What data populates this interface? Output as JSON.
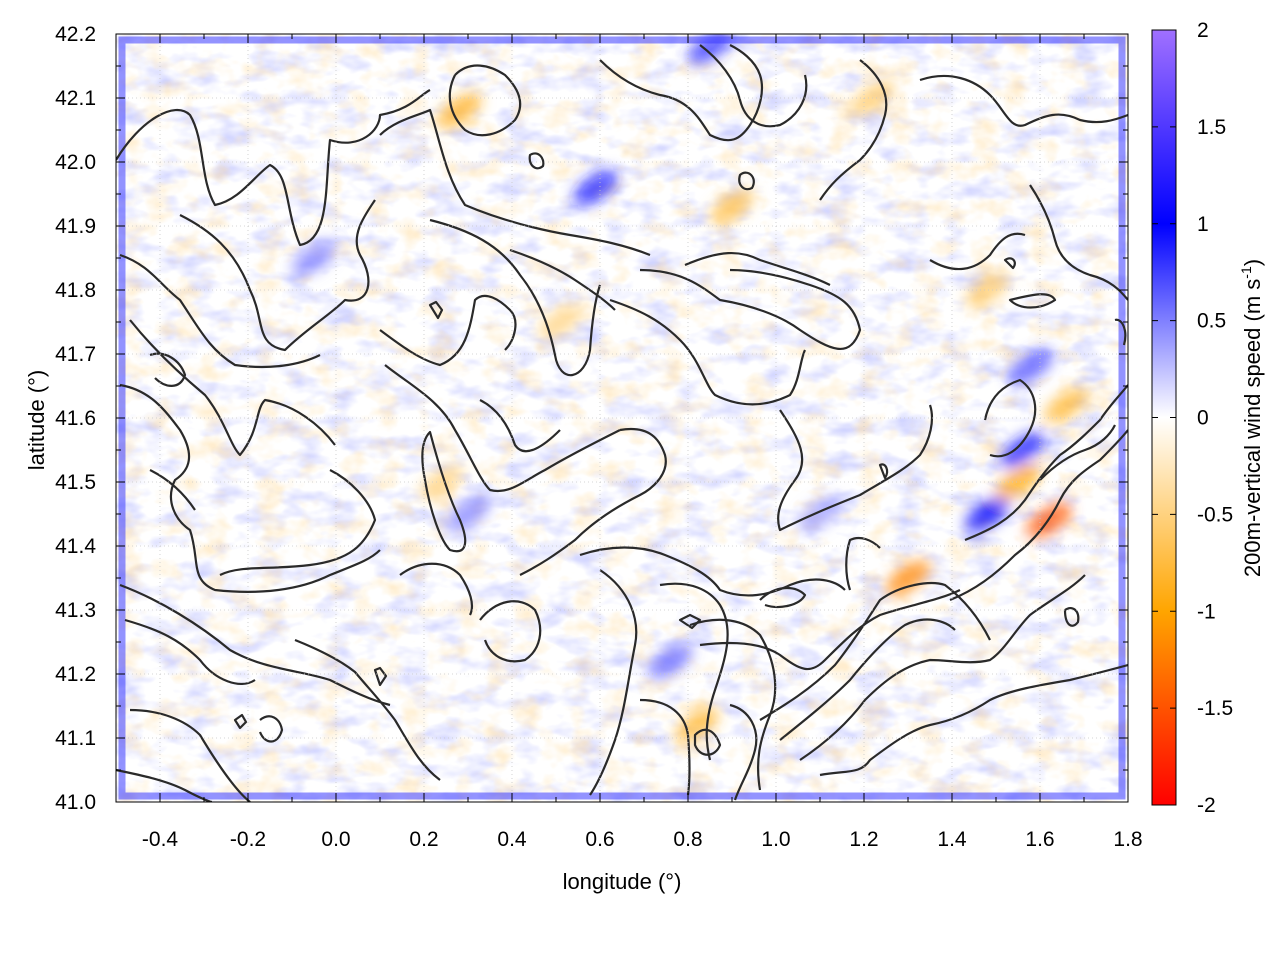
{
  "chart_data": {
    "type": "heatmap",
    "xlabel": "longitude (°)",
    "ylabel": "latitude (°)",
    "xlim": [
      -0.5,
      1.8
    ],
    "ylim": [
      41.0,
      42.2
    ],
    "x_ticks": [
      -0.4,
      -0.2,
      0.0,
      0.2,
      0.4,
      0.6,
      0.8,
      1.0,
      1.2,
      1.4,
      1.6,
      1.8
    ],
    "x_tick_labels": [
      "-0.4",
      "-0.2",
      "0.0",
      "0.2",
      "0.4",
      "0.6",
      "0.8",
      "1.0",
      "1.2",
      "1.4",
      "1.6",
      "1.8"
    ],
    "y_ticks": [
      41.0,
      41.1,
      41.2,
      41.3,
      41.4,
      41.5,
      41.6,
      41.7,
      41.8,
      41.9,
      42.0,
      42.1,
      42.2
    ],
    "y_tick_labels": [
      "41.0",
      "41.1",
      "41.2",
      "41.3",
      "41.4",
      "41.5",
      "41.6",
      "41.7",
      "41.8",
      "41.9",
      "42.0",
      "42.1",
      "42.2"
    ],
    "grid": true,
    "colorbar": {
      "label": "200m-vertical wind speed (m s",
      "label_sup": "-1",
      "label_end": ")",
      "range": [
        -2,
        2
      ],
      "ticks": [
        -2,
        -1.5,
        -1,
        -0.5,
        0,
        0.5,
        1,
        1.5,
        2
      ],
      "tick_labels": [
        "-2",
        "-1.5",
        "-1",
        "-0.5",
        "0",
        "0.5",
        "1",
        "1.5",
        "2"
      ],
      "stops": [
        {
          "value": -2,
          "color": "#ff0000"
        },
        {
          "value": -1,
          "color": "#ffa500"
        },
        {
          "value": 0,
          "color": "#ffffff"
        },
        {
          "value": 1,
          "color": "#0000ff"
        },
        {
          "value": 2,
          "color": "#a070ff"
        }
      ]
    },
    "positive_hotspots": [
      {
        "lon": 1.48,
        "lat": 41.45,
        "value": 1.0
      },
      {
        "lon": 1.56,
        "lat": 41.55,
        "value": 0.9
      },
      {
        "lon": 1.58,
        "lat": 41.68,
        "value": 0.7
      },
      {
        "lon": 0.59,
        "lat": 41.96,
        "value": 0.9
      },
      {
        "lon": 0.85,
        "lat": 42.18,
        "value": 0.8
      },
      {
        "lon": 0.3,
        "lat": 41.45,
        "value": 0.5
      },
      {
        "lon": 0.76,
        "lat": 41.22,
        "value": 0.6
      },
      {
        "lon": -0.05,
        "lat": 41.85,
        "value": 0.5
      },
      {
        "lon": 1.1,
        "lat": 41.45,
        "value": 0.4
      }
    ],
    "negative_hotspots": [
      {
        "lon": 1.62,
        "lat": 41.44,
        "value": -1.5
      },
      {
        "lon": 1.3,
        "lat": 41.35,
        "value": -1.2
      },
      {
        "lon": 1.55,
        "lat": 41.5,
        "value": -1.0
      },
      {
        "lon": 1.66,
        "lat": 41.62,
        "value": -0.8
      },
      {
        "lon": 0.28,
        "lat": 42.08,
        "value": -0.9
      },
      {
        "lon": 0.82,
        "lat": 41.12,
        "value": -0.8
      },
      {
        "lon": 0.9,
        "lat": 41.93,
        "value": -0.7
      },
      {
        "lon": 0.51,
        "lat": 41.75,
        "value": -0.5
      },
      {
        "lon": 0.24,
        "lat": 41.5,
        "value": -0.5
      },
      {
        "lon": 1.22,
        "lat": 42.1,
        "value": -0.6
      },
      {
        "lon": 1.48,
        "lat": 41.8,
        "value": -0.6
      }
    ]
  }
}
